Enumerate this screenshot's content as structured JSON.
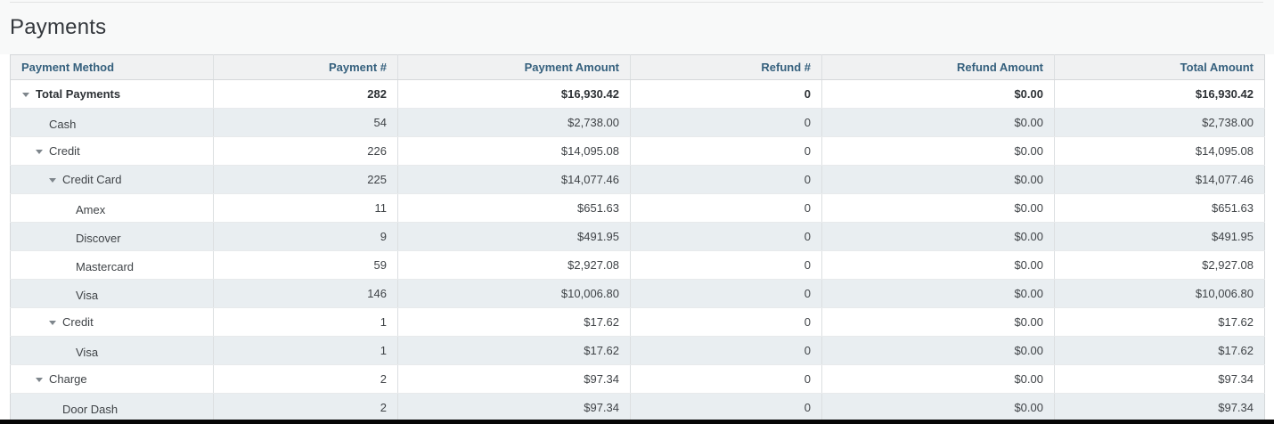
{
  "page": {
    "title": "Payments"
  },
  "colors": {
    "header_text": "#35607d",
    "header_bg": "#f0f1f2",
    "stripe_bg": "#e9eef1",
    "body_text": "#3f4347",
    "border": "#d5d8da",
    "bottom_bar": "#060606"
  },
  "table": {
    "columns": [
      {
        "label": "Payment Method",
        "align": "left"
      },
      {
        "label": "Payment #",
        "align": "right"
      },
      {
        "label": "Payment Amount",
        "align": "right"
      },
      {
        "label": "Refund #",
        "align": "right"
      },
      {
        "label": "Refund Amount",
        "align": "right"
      },
      {
        "label": "Total Amount",
        "align": "right"
      }
    ],
    "rows": [
      {
        "method": "Total Payments",
        "level": 0,
        "has_arrow": true,
        "bold": true,
        "payment_count": "282",
        "payment_amount": "$16,930.42",
        "refund_count": "0",
        "refund_amount": "$0.00",
        "total_amount": "$16,930.42"
      },
      {
        "method": "Cash",
        "level": 1,
        "has_arrow": false,
        "bold": false,
        "payment_count": "54",
        "payment_amount": "$2,738.00",
        "refund_count": "0",
        "refund_amount": "$0.00",
        "total_amount": "$2,738.00"
      },
      {
        "method": "Credit",
        "level": 1,
        "has_arrow": true,
        "bold": false,
        "payment_count": "226",
        "payment_amount": "$14,095.08",
        "refund_count": "0",
        "refund_amount": "$0.00",
        "total_amount": "$14,095.08"
      },
      {
        "method": "Credit Card",
        "level": 2,
        "has_arrow": true,
        "bold": false,
        "payment_count": "225",
        "payment_amount": "$14,077.46",
        "refund_count": "0",
        "refund_amount": "$0.00",
        "total_amount": "$14,077.46"
      },
      {
        "method": "Amex",
        "level": 3,
        "has_arrow": false,
        "bold": false,
        "payment_count": "11",
        "payment_amount": "$651.63",
        "refund_count": "0",
        "refund_amount": "$0.00",
        "total_amount": "$651.63"
      },
      {
        "method": "Discover",
        "level": 3,
        "has_arrow": false,
        "bold": false,
        "payment_count": "9",
        "payment_amount": "$491.95",
        "refund_count": "0",
        "refund_amount": "$0.00",
        "total_amount": "$491.95"
      },
      {
        "method": "Mastercard",
        "level": 3,
        "has_arrow": false,
        "bold": false,
        "payment_count": "59",
        "payment_amount": "$2,927.08",
        "refund_count": "0",
        "refund_amount": "$0.00",
        "total_amount": "$2,927.08"
      },
      {
        "method": "Visa",
        "level": 3,
        "has_arrow": false,
        "bold": false,
        "payment_count": "146",
        "payment_amount": "$10,006.80",
        "refund_count": "0",
        "refund_amount": "$0.00",
        "total_amount": "$10,006.80"
      },
      {
        "method": "Credit",
        "level": 2,
        "has_arrow": true,
        "bold": false,
        "payment_count": "1",
        "payment_amount": "$17.62",
        "refund_count": "0",
        "refund_amount": "$0.00",
        "total_amount": "$17.62"
      },
      {
        "method": "Visa",
        "level": 3,
        "has_arrow": false,
        "bold": false,
        "payment_count": "1",
        "payment_amount": "$17.62",
        "refund_count": "0",
        "refund_amount": "$0.00",
        "total_amount": "$17.62"
      },
      {
        "method": "Charge",
        "level": 1,
        "has_arrow": true,
        "bold": false,
        "payment_count": "2",
        "payment_amount": "$97.34",
        "refund_count": "0",
        "refund_amount": "$0.00",
        "total_amount": "$97.34"
      },
      {
        "method": "Door Dash",
        "level": 2,
        "has_arrow": false,
        "bold": false,
        "payment_count": "2",
        "payment_amount": "$97.34",
        "refund_count": "0",
        "refund_amount": "$0.00",
        "total_amount": "$97.34"
      }
    ]
  }
}
